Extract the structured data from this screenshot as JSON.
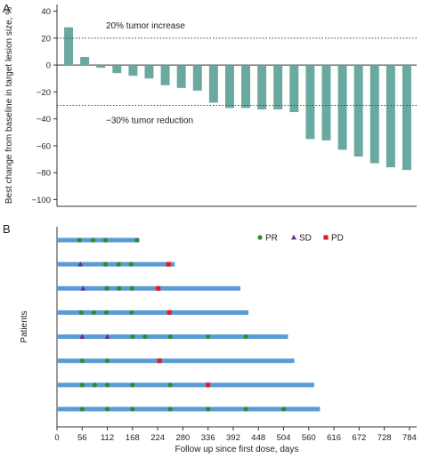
{
  "chart_data": [
    {
      "panel": "A",
      "type": "bar",
      "ylabel_lines": [
        "Best change from baseline in target lesion size, %"
      ],
      "ylim": [
        -105,
        45
      ],
      "yticks": [
        40,
        20,
        0,
        -20,
        -40,
        -60,
        -80,
        -100
      ],
      "values": [
        28,
        6,
        -2,
        -6,
        -8,
        -10,
        -15,
        -17,
        -19,
        -28,
        -32,
        -32,
        -33,
        -33,
        -35,
        -55,
        -56,
        -63,
        -68,
        -73,
        -76,
        -78
      ],
      "bar_color": "#6aa9a0",
      "reference_lines": [
        {
          "y": 20,
          "label": "20% tumor increase"
        },
        {
          "y": -30,
          "label": "−30% tumor reduction"
        }
      ]
    },
    {
      "panel": "B",
      "type": "swimmer",
      "xlabel": "Follow up since first dose, days",
      "ylabel": "Patients",
      "xlim": [
        0,
        800
      ],
      "xticks": [
        0,
        56,
        112,
        168,
        224,
        280,
        336,
        392,
        448,
        504,
        560,
        616,
        672,
        728,
        784
      ],
      "lane_color": "#5b9bd5",
      "legend": [
        {
          "name": "PR",
          "marker": "circle",
          "color": "#2e8b2e"
        },
        {
          "name": "SD",
          "marker": "triangle",
          "color": "#6a2c91"
        },
        {
          "name": "PD",
          "marker": "square",
          "color": "#e02020"
        }
      ],
      "patients": [
        {
          "duration": 183,
          "events": [
            {
              "day": 50,
              "type": "PR"
            },
            {
              "day": 80,
              "type": "PR"
            },
            {
              "day": 108,
              "type": "PR"
            },
            {
              "day": 178,
              "type": "PR"
            }
          ]
        },
        {
          "duration": 262,
          "events": [
            {
              "day": 52,
              "type": "SD"
            },
            {
              "day": 108,
              "type": "PR"
            },
            {
              "day": 137,
              "type": "PR"
            },
            {
              "day": 165,
              "type": "PR"
            },
            {
              "day": 248,
              "type": "PD"
            }
          ]
        },
        {
          "duration": 408,
          "events": [
            {
              "day": 58,
              "type": "SD"
            },
            {
              "day": 111,
              "type": "PR"
            },
            {
              "day": 138,
              "type": "PR"
            },
            {
              "day": 167,
              "type": "PR"
            },
            {
              "day": 225,
              "type": "PD"
            }
          ]
        },
        {
          "duration": 426,
          "events": [
            {
              "day": 54,
              "type": "PR"
            },
            {
              "day": 82,
              "type": "PR"
            },
            {
              "day": 110,
              "type": "PR"
            },
            {
              "day": 166,
              "type": "PR"
            },
            {
              "day": 250,
              "type": "PD"
            }
          ]
        },
        {
          "duration": 514,
          "events": [
            {
              "day": 56,
              "type": "SD"
            },
            {
              "day": 112,
              "type": "SD"
            },
            {
              "day": 168,
              "type": "PR"
            },
            {
              "day": 196,
              "type": "PR"
            },
            {
              "day": 252,
              "type": "PR"
            },
            {
              "day": 336,
              "type": "PR"
            },
            {
              "day": 420,
              "type": "PR"
            }
          ]
        },
        {
          "duration": 528,
          "events": [
            {
              "day": 56,
              "type": "PR"
            },
            {
              "day": 112,
              "type": "PR"
            },
            {
              "day": 228,
              "type": "PD"
            }
          ]
        },
        {
          "duration": 572,
          "events": [
            {
              "day": 56,
              "type": "PR"
            },
            {
              "day": 84,
              "type": "PR"
            },
            {
              "day": 112,
              "type": "PR"
            },
            {
              "day": 168,
              "type": "PR"
            },
            {
              "day": 252,
              "type": "PR"
            },
            {
              "day": 336,
              "type": "PD"
            }
          ]
        },
        {
          "duration": 585,
          "events": [
            {
              "day": 56,
              "type": "PR"
            },
            {
              "day": 112,
              "type": "PR"
            },
            {
              "day": 168,
              "type": "PR"
            },
            {
              "day": 252,
              "type": "PR"
            },
            {
              "day": 336,
              "type": "PR"
            },
            {
              "day": 420,
              "type": "PR"
            },
            {
              "day": 504,
              "type": "PR"
            }
          ]
        }
      ]
    }
  ]
}
